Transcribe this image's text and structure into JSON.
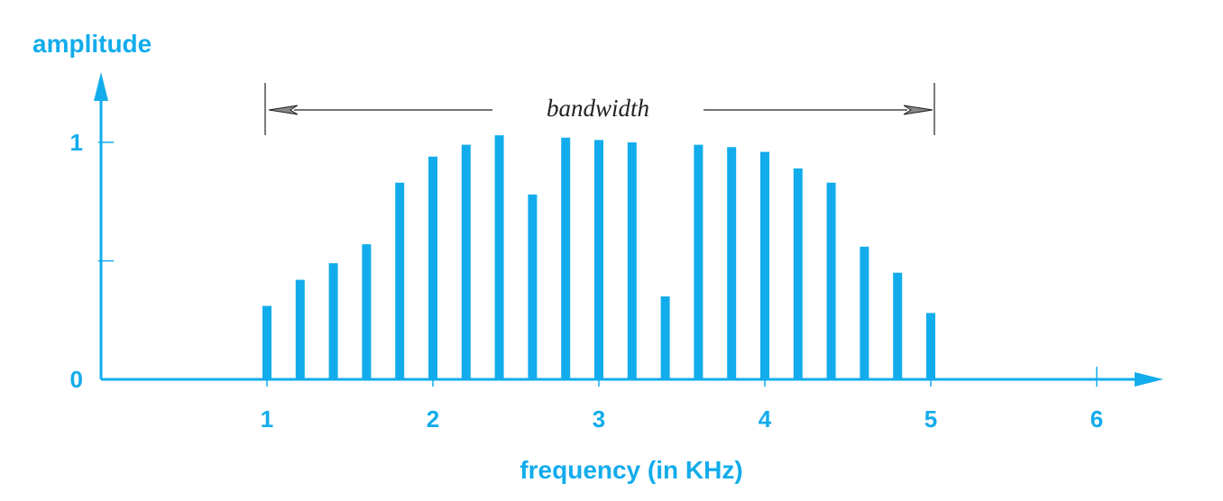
{
  "chart_data": {
    "type": "bar",
    "xlabel": "frequency (in KHz)",
    "ylabel": "amplitude",
    "xlim": [
      0,
      6.4
    ],
    "ylim": [
      0,
      1
    ],
    "x_ticks": [
      {
        "value": 1,
        "label": "1"
      },
      {
        "value": 2,
        "label": "2"
      },
      {
        "value": 3,
        "label": "3"
      },
      {
        "value": 4,
        "label": "4"
      },
      {
        "value": 5,
        "label": "5"
      },
      {
        "value": 6,
        "label": "6"
      }
    ],
    "y_ticks": [
      {
        "value": 0,
        "label": "0"
      },
      {
        "value": 0.5,
        "label": ""
      },
      {
        "value": 1,
        "label": "1"
      }
    ],
    "x": [
      1.0,
      1.2,
      1.4,
      1.6,
      1.8,
      2.0,
      2.2,
      2.4,
      2.6,
      2.8,
      3.0,
      3.2,
      3.4,
      3.6,
      3.8,
      4.0,
      4.2,
      4.4,
      4.6,
      4.8,
      5.0
    ],
    "values": [
      0.31,
      0.42,
      0.49,
      0.57,
      0.83,
      0.94,
      0.99,
      1.03,
      0.78,
      1.02,
      1.01,
      1.0,
      0.35,
      0.99,
      0.98,
      0.96,
      0.89,
      0.83,
      0.56,
      0.45,
      0.28
    ],
    "annotation": {
      "text": "bandwidth",
      "from": 1,
      "to": 5
    },
    "colors": {
      "accent": "#12ACEC",
      "annotation": "#222222"
    }
  }
}
